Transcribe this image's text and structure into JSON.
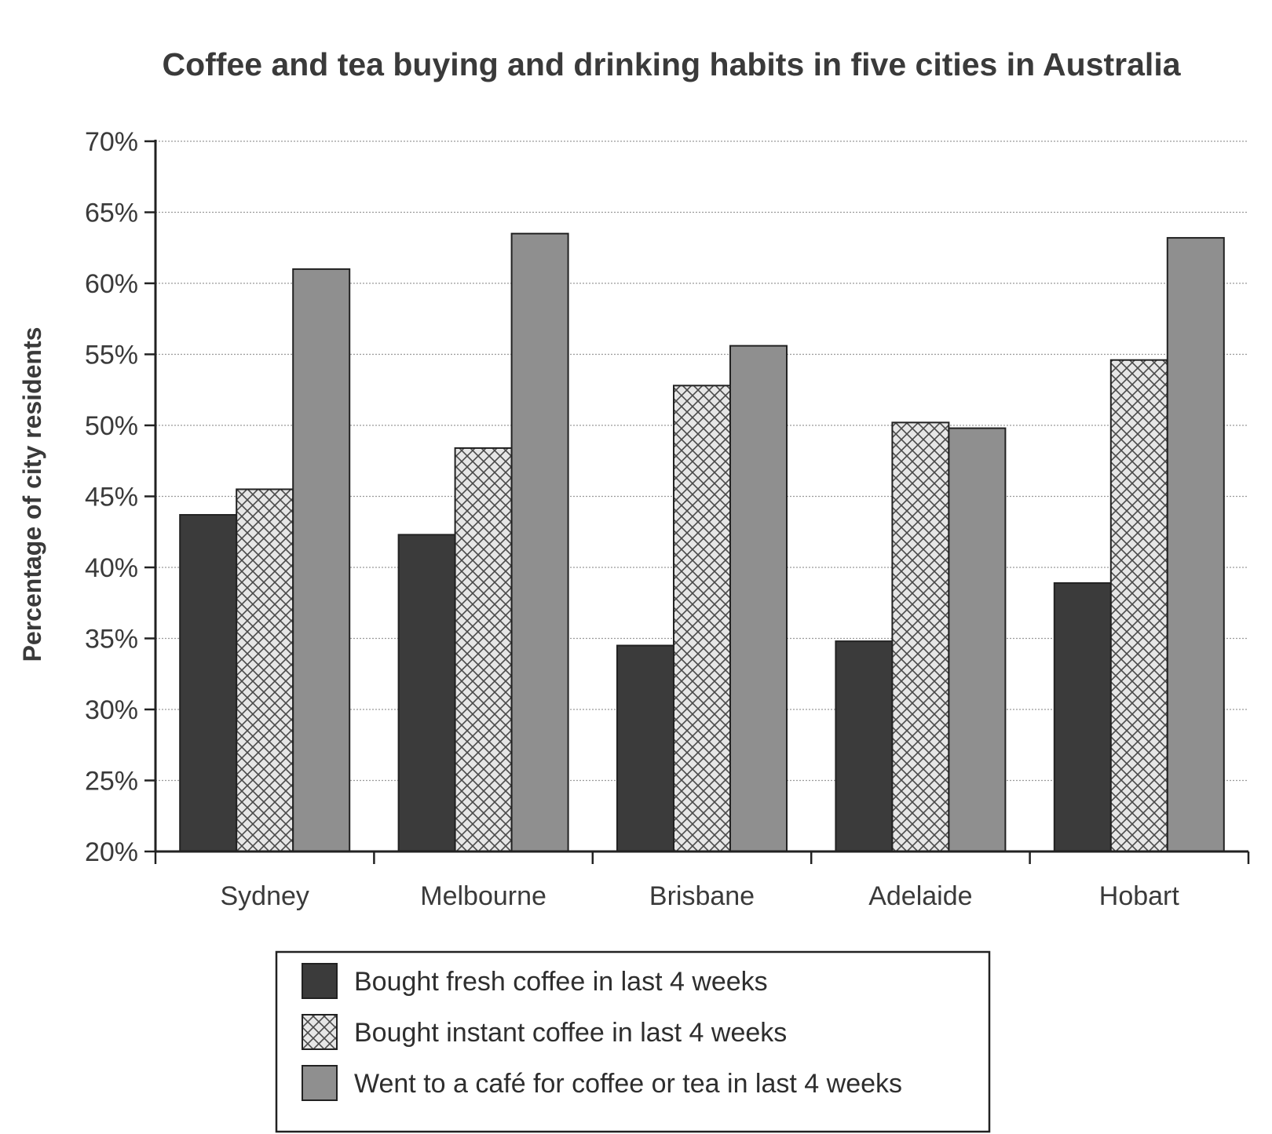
{
  "chart_data": {
    "type": "bar",
    "title": "Coffee and tea buying and drinking habits in five cities in Australia",
    "ylabel": "Percentage of city residents",
    "xlabel": "",
    "ylim": [
      20,
      70
    ],
    "yticks": [
      "20%",
      "25%",
      "30%",
      "35%",
      "40%",
      "45%",
      "50%",
      "55%",
      "60%",
      "65%",
      "70%"
    ],
    "grid": true,
    "legend_position": "bottom-center",
    "categories": [
      "Sydney",
      "Melbourne",
      "Brisbane",
      "Adelaide",
      "Hobart"
    ],
    "series": [
      {
        "name": "Bought fresh coffee in last 4 weeks",
        "values": [
          43.7,
          42.3,
          34.5,
          34.8,
          38.9
        ],
        "color": "#3b3b3b",
        "pattern": "solid"
      },
      {
        "name": "Bought instant coffee in last 4 weeks",
        "values": [
          45.5,
          48.4,
          52.8,
          50.2,
          54.6
        ],
        "color": "#dcdcdc",
        "pattern": "crosshatch"
      },
      {
        "name": "Went to a café for coffee or tea in last 4 weeks",
        "values": [
          61.0,
          63.5,
          55.6,
          49.8,
          63.2
        ],
        "color": "#8f8f8f",
        "pattern": "solid"
      }
    ]
  }
}
